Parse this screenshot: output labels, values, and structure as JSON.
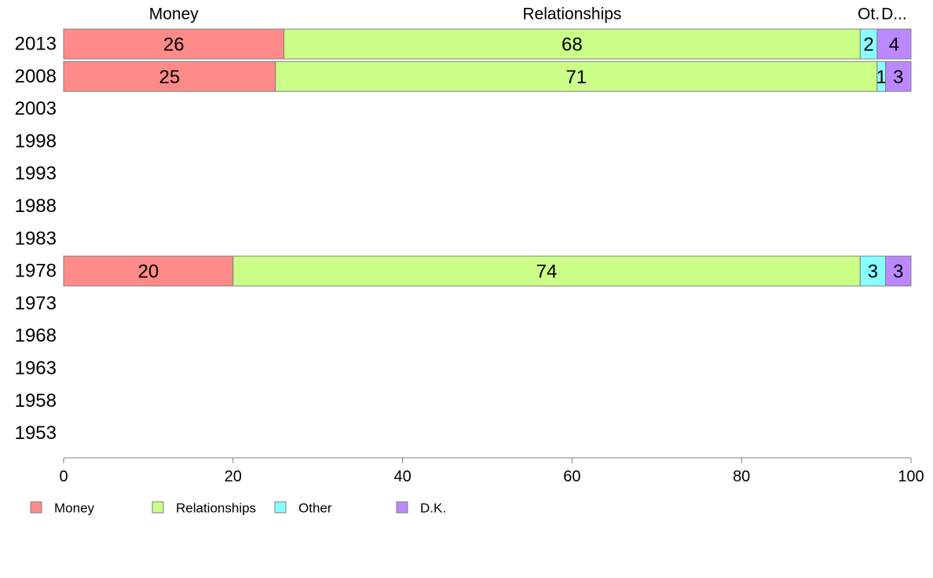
{
  "chart_data": {
    "type": "bar",
    "orientation": "horizontal",
    "stacked": true,
    "categories": [
      "2013",
      "2008",
      "2003",
      "1998",
      "1993",
      "1988",
      "1983",
      "1978",
      "1973",
      "1968",
      "1963",
      "1958",
      "1953"
    ],
    "series": [
      {
        "name": "Money",
        "color": "#ff8a8a",
        "values": [
          26,
          25,
          null,
          null,
          null,
          null,
          null,
          20,
          null,
          null,
          null,
          null,
          null
        ]
      },
      {
        "name": "Relationships",
        "color": "#ccff88",
        "values": [
          68,
          71,
          null,
          null,
          null,
          null,
          null,
          74,
          null,
          null,
          null,
          null,
          null
        ]
      },
      {
        "name": "Other",
        "color": "#88ffff",
        "values": [
          2,
          1,
          null,
          null,
          null,
          null,
          null,
          3,
          null,
          null,
          null,
          null,
          null
        ]
      },
      {
        "name": "D.K.",
        "color": "#bb88ff",
        "values": [
          4,
          3,
          null,
          null,
          null,
          null,
          null,
          3,
          null,
          null,
          null,
          null,
          null
        ]
      }
    ],
    "column_headers": [
      "Money",
      "Relationships",
      "Ot.",
      "D..."
    ],
    "xlim": [
      0,
      100
    ],
    "xticks": [
      "0",
      "20",
      "40",
      "60",
      "80",
      "100"
    ],
    "grid": false,
    "legend_position": "bottom-left"
  }
}
